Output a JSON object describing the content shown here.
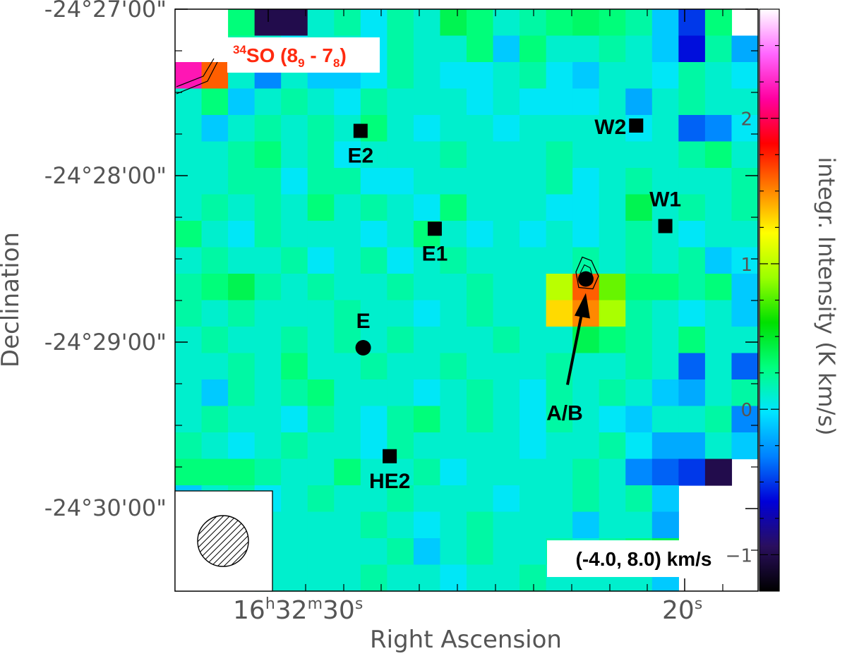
{
  "chart_data": {
    "type": "heatmap",
    "title": "",
    "xlabel": "Right Ascension",
    "ylabel": "Declination",
    "colorbar_label": "integr. Intensity (K km/s)",
    "map_label": {
      "species_sup": "34",
      "species": "SO",
      "transition_open": "(8",
      "upper_sub": "9",
      "sep": " - 7",
      "lower_sub": "8",
      "transition_close": ")"
    },
    "velocity_range": "(-4.0, 8.0) km/s",
    "x_ticks": [
      {
        "h": "16",
        "m": "32",
        "s": "30",
        "label_parts": [
          "16",
          "h",
          "32",
          "m",
          "30",
          "s"
        ]
      },
      {
        "s": "20",
        "label_parts": [
          "20",
          "s"
        ]
      }
    ],
    "y_ticks": [
      "-24°27'00\"",
      "-24°28'00\"",
      "-24°29'00\"",
      "-24°30'00\""
    ],
    "colorbar_ticks": [
      "2",
      "1",
      "0",
      "−1"
    ],
    "colorbar_range": [
      -1.25,
      2.75
    ],
    "colormap": [
      "#000000",
      "#2a0f5e",
      "#0000d8",
      "#0080ff",
      "#00e5ff",
      "#00ff7f",
      "#00e000",
      "#9bff00",
      "#ffff00",
      "#ff8000",
      "#ff0000",
      "#ff00a0",
      "#ff66ff",
      "#ffffff"
    ],
    "grid_columns": 22,
    "grid_rows": 22,
    "sources": [
      {
        "name": "E2",
        "marker": "square",
        "col": 7,
        "row": 4.6,
        "label_pos": "below"
      },
      {
        "name": "E1",
        "marker": "square",
        "col": 9.8,
        "row": 8.3,
        "label_pos": "below"
      },
      {
        "name": "E",
        "marker": "circle",
        "col": 7.1,
        "row": 12.8,
        "label_pos": "above"
      },
      {
        "name": "HE2",
        "marker": "square",
        "col": 8.1,
        "row": 16.9,
        "label_pos": "below"
      },
      {
        "name": "W2",
        "marker": "square",
        "col": 17.4,
        "row": 4.4,
        "label_pos": "left"
      },
      {
        "name": "W1",
        "marker": "square",
        "col": 18.5,
        "row": 8.2,
        "label_pos": "above"
      },
      {
        "name": "A/B",
        "marker": "circle",
        "col": 15.5,
        "row": 10.2,
        "label_pos": "arrow"
      }
    ],
    "pixel_values": [
      [
        null,
        null,
        0.3,
        -1.0,
        -1.0,
        0.1,
        0.2,
        0.0,
        0.2,
        0.1,
        0.4,
        0.3,
        0.1,
        0.2,
        0.3,
        0.35,
        0.3,
        0.2,
        -0.1,
        -0.5,
        0.3,
        null
      ],
      [
        null,
        null,
        0.2,
        0.1,
        0.0,
        0.1,
        0.1,
        0.0,
        0.2,
        0.1,
        0.1,
        0.3,
        -0.1,
        0.3,
        0.1,
        0.1,
        0.2,
        0.1,
        -0.1,
        -0.6,
        0.2,
        -0.2
      ],
      [
        2.2,
        1.6,
        0.1,
        -0.3,
        0.1,
        -0.1,
        -0.1,
        0.0,
        0.2,
        0.1,
        0.0,
        0.0,
        0.1,
        0.2,
        0.0,
        -0.1,
        0.1,
        0.1,
        0.0,
        0.2,
        0.1,
        0.0
      ],
      [
        0.1,
        0.3,
        -0.1,
        0.1,
        0.2,
        0.1,
        0.0,
        0.2,
        0.1,
        0.1,
        0.1,
        0.0,
        0.1,
        0.0,
        0.0,
        0.0,
        0.1,
        -0.2,
        0.1,
        0.2,
        0.1,
        0.1
      ],
      [
        0.1,
        -0.1,
        0.1,
        0.2,
        0.1,
        0.2,
        0.1,
        0.3,
        0.1,
        0.0,
        0.1,
        0.1,
        0.0,
        0.1,
        0.1,
        0.1,
        0.1,
        0.0,
        0.1,
        -0.4,
        -0.3,
        0.0
      ],
      [
        0.1,
        0.1,
        0.2,
        0.3,
        0.1,
        0.2,
        0.0,
        0.1,
        0.1,
        0.1,
        0.2,
        0.1,
        0.1,
        0.1,
        0.2,
        0.1,
        0.1,
        0.1,
        0.1,
        0.2,
        0.3,
        0.1
      ],
      [
        0.1,
        0.1,
        0.2,
        0.2,
        0.0,
        0.2,
        0.2,
        0.0,
        0.0,
        0.1,
        0.1,
        0.1,
        0.1,
        0.1,
        0.2,
        0.0,
        0.1,
        0.2,
        0.1,
        0.1,
        0.1,
        0.2
      ],
      [
        0.1,
        0.2,
        0.1,
        0.2,
        0.1,
        0.3,
        0.1,
        0.2,
        0.1,
        0.0,
        0.3,
        0.1,
        0.1,
        0.1,
        0.0,
        0.0,
        0.1,
        0.4,
        0.1,
        0.2,
        0.1,
        0.2
      ],
      [
        0.3,
        0.1,
        0.0,
        0.2,
        0.1,
        0.1,
        0.1,
        0.0,
        0.1,
        0.3,
        0.1,
        0.0,
        0.1,
        0.0,
        0.1,
        0.0,
        0.1,
        0.2,
        0.1,
        0.0,
        0.1,
        0.1
      ],
      [
        0.1,
        0.2,
        0.1,
        0.1,
        0.2,
        0.0,
        0.1,
        0.2,
        0.0,
        0.1,
        0.2,
        0.1,
        0.1,
        0.1,
        0.1,
        0.2,
        0.1,
        0.2,
        0.1,
        0.2,
        -0.1,
        0.0
      ],
      [
        0.2,
        0.3,
        0.4,
        0.2,
        0.1,
        0.2,
        0.1,
        0.1,
        0.2,
        0.1,
        0.1,
        0.2,
        0.1,
        0.1,
        1.0,
        1.6,
        0.8,
        0.3,
        0.3,
        0.2,
        0.3,
        -0.1
      ],
      [
        0.2,
        0.1,
        0.2,
        0.1,
        0.1,
        0.1,
        0.2,
        0.1,
        0.1,
        0.0,
        0.1,
        0.2,
        0.1,
        0.1,
        1.3,
        1.5,
        0.95,
        0.2,
        0.1,
        0.0,
        0.1,
        -0.1
      ],
      [
        0.1,
        0.2,
        0.1,
        0.1,
        0.2,
        0.1,
        0.2,
        0.1,
        0.2,
        0.1,
        0.1,
        0.1,
        0.2,
        0.1,
        0.1,
        0.4,
        0.3,
        0.2,
        0.1,
        0.3,
        0.1,
        0.1
      ],
      [
        0.1,
        0.1,
        0.2,
        0.1,
        0.3,
        0.1,
        0.1,
        0.2,
        0.1,
        0.1,
        0.2,
        0.1,
        0.1,
        0.1,
        0.2,
        0.1,
        0.1,
        0.2,
        0.1,
        -0.4,
        0.1,
        -0.4
      ],
      [
        0.1,
        -0.1,
        0.2,
        0.1,
        0.2,
        0.3,
        0.1,
        0.1,
        0.1,
        0.0,
        0.1,
        0.2,
        0.1,
        0.0,
        0.2,
        0.1,
        0.2,
        0.1,
        -0.1,
        -0.2,
        0.1,
        0.2
      ],
      [
        0.1,
        0.2,
        0.1,
        0.1,
        0.0,
        0.2,
        0.1,
        0.0,
        0.2,
        0.3,
        0.1,
        0.2,
        0.1,
        0.0,
        0.2,
        0.1,
        0.0,
        -0.1,
        0.1,
        0.1,
        0.2,
        -0.3
      ],
      [
        0.2,
        0.1,
        0.0,
        0.1,
        0.2,
        0.1,
        0.1,
        0.0,
        0.2,
        0.1,
        0.1,
        0.1,
        0.1,
        0.0,
        0.1,
        0.1,
        0.2,
        0.0,
        -0.2,
        -0.2,
        0.1,
        -0.1
      ],
      [
        0.3,
        0.3,
        0.3,
        0.2,
        0.1,
        0.1,
        0.3,
        0.1,
        0.1,
        0.2,
        0.0,
        0.1,
        0.1,
        0.1,
        0.1,
        0.2,
        0.1,
        -0.3,
        -0.4,
        -0.5,
        -1.0,
        null
      ],
      [
        -0.1,
        0.1,
        0.2,
        0.0,
        0.1,
        0.2,
        0.1,
        0.1,
        0.2,
        0.1,
        0.1,
        0.1,
        0.0,
        0.1,
        0.1,
        0.2,
        0.1,
        0.2,
        -0.1,
        null,
        null,
        null
      ],
      [
        null,
        null,
        null,
        0.1,
        0.1,
        0.1,
        0.1,
        0.2,
        0.1,
        0.0,
        0.1,
        0.2,
        0.1,
        0.1,
        0.1,
        -0.1,
        0.1,
        0.1,
        -0.2,
        null,
        null,
        null
      ],
      [
        null,
        null,
        null,
        0.1,
        0.1,
        0.1,
        0.1,
        0.1,
        0.2,
        -0.1,
        0.1,
        0.2,
        0.1,
        0.1,
        0.2,
        0.1,
        0.2,
        0.3,
        0.4,
        null,
        null,
        null
      ],
      [
        null,
        null,
        null,
        0.1,
        0.1,
        0.1,
        0.1,
        0.2,
        0.1,
        0.1,
        0.0,
        0.1,
        0.1,
        0.2,
        0.1,
        0.1,
        0.1,
        0.1,
        -0.1,
        null,
        null,
        null
      ]
    ]
  }
}
